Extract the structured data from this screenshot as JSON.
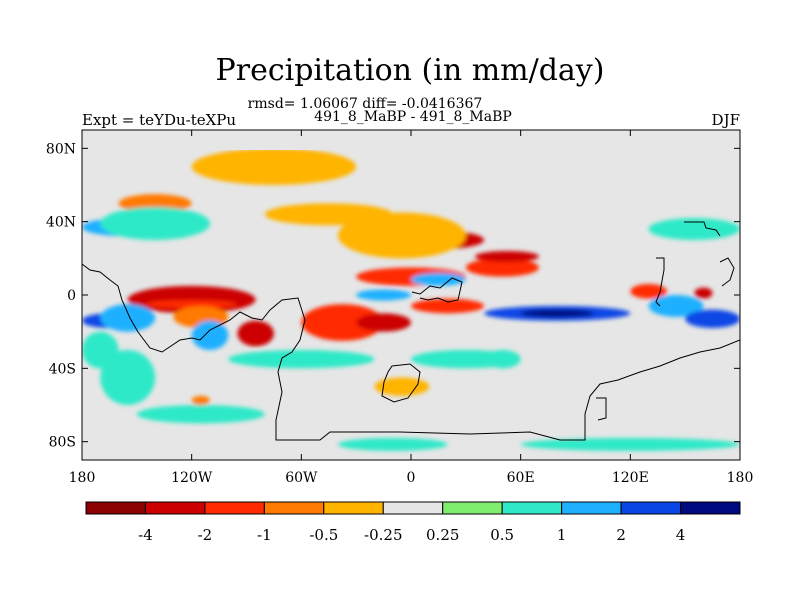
{
  "chart_data": {
    "type": "heatmap",
    "title": "Precipitation (in mm/day)",
    "stats_line": "rmsd= 1.06067 diff= -0.0416367",
    "subtitle": "491_8_MaBP - 491_8_MaBP",
    "left_label": "Expt = teYDu-teXPu",
    "right_label": "DJF",
    "projection": "cylindrical-equidistant",
    "xlim": [
      -180,
      180
    ],
    "ylim": [
      -90,
      90
    ],
    "x_ticks": [
      {
        "value": -180,
        "label": "180"
      },
      {
        "value": -120,
        "label": "120W"
      },
      {
        "value": -60,
        "label": "60W"
      },
      {
        "value": 0,
        "label": "0"
      },
      {
        "value": 60,
        "label": "60E"
      },
      {
        "value": 120,
        "label": "120E"
      },
      {
        "value": 180,
        "label": "180"
      }
    ],
    "y_ticks": [
      {
        "value": 80,
        "label": "80N"
      },
      {
        "value": 40,
        "label": "40N"
      },
      {
        "value": 0,
        "label": "0"
      },
      {
        "value": -40,
        "label": "40S"
      },
      {
        "value": -80,
        "label": "80S"
      }
    ],
    "colorbar": {
      "colors": [
        "#8b0000",
        "#cc0000",
        "#ff2a00",
        "#ff7a00",
        "#ffb400",
        "#e6e6e6",
        "#7fee6e",
        "#2fe9c8",
        "#1fb0ff",
        "#0a46e6",
        "#000a80"
      ],
      "labels": [
        "-4",
        "-2",
        "-1",
        "-0.5",
        "-0.25",
        "0.25",
        "0.5",
        "1",
        "2",
        "4"
      ]
    },
    "regions": [
      {
        "lon": [
          -155,
          -85
        ],
        "lat": [
          -10,
          5
        ],
        "level": -3
      },
      {
        "lon": [
          -145,
          -95
        ],
        "lat": [
          -5,
          -5
        ],
        "level": -2
      },
      {
        "lon": [
          -130,
          -100
        ],
        "lat": [
          -18,
          -6
        ],
        "level": -1
      },
      {
        "lon": [
          -95,
          -75
        ],
        "lat": [
          -28,
          -14
        ],
        "level": -3
      },
      {
        "lon": [
          -60,
          -15
        ],
        "lat": [
          -25,
          -5
        ],
        "level": -2
      },
      {
        "lon": [
          -30,
          0
        ],
        "lat": [
          -20,
          -10
        ],
        "level": -3
      },
      {
        "lon": [
          0,
          40
        ],
        "lat": [
          -10,
          -2
        ],
        "level": -2
      },
      {
        "lon": [
          -30,
          30
        ],
        "lat": [
          5,
          15
        ],
        "level": -2
      },
      {
        "lon": [
          -10,
          40
        ],
        "lat": [
          25,
          35
        ],
        "level": -3
      },
      {
        "lon": [
          30,
          70
        ],
        "lat": [
          10,
          20
        ],
        "level": -2
      },
      {
        "lon": [
          35,
          70
        ],
        "lat": [
          18,
          24
        ],
        "level": -3
      },
      {
        "lon": [
          120,
          140
        ],
        "lat": [
          -2,
          6
        ],
        "level": -2
      },
      {
        "lon": [
          155,
          165
        ],
        "lat": [
          -2,
          4
        ],
        "level": -3
      },
      {
        "lon": [
          -160,
          -120
        ],
        "lat": [
          45,
          55
        ],
        "level": -1
      },
      {
        "lon": [
          -80,
          -10
        ],
        "lat": [
          38,
          50
        ],
        "level": -0.5
      },
      {
        "lon": [
          -40,
          30
        ],
        "lat": [
          20,
          45
        ],
        "level": -0.5
      },
      {
        "lon": [
          -120,
          -30
        ],
        "lat": [
          60,
          80
        ],
        "level": -0.4
      },
      {
        "lon": [
          -20,
          10
        ],
        "lat": [
          -55,
          -45
        ],
        "level": -0.5
      },
      {
        "lon": [
          -120,
          -110
        ],
        "lat": [
          -60,
          -55
        ],
        "level": -1
      },
      {
        "lon": [
          40,
          120
        ],
        "lat": [
          -14,
          -6
        ],
        "level": 2
      },
      {
        "lon": [
          60,
          100
        ],
        "lat": [
          -12,
          -8
        ],
        "level": 4
      },
      {
        "lon": [
          -180,
          -150
        ],
        "lat": [
          -18,
          -10
        ],
        "level": 2
      },
      {
        "lon": [
          -160,
          -150
        ],
        "lat": [
          -15,
          -12
        ],
        "level": 3
      },
      {
        "lon": [
          -170,
          -140
        ],
        "lat": [
          -20,
          -5
        ],
        "level": 1
      },
      {
        "lon": [
          -120,
          -100
        ],
        "lat": [
          -30,
          -14
        ],
        "level": 1
      },
      {
        "lon": [
          0,
          30
        ],
        "lat": [
          5,
          12
        ],
        "level": 1
      },
      {
        "lon": [
          -30,
          0
        ],
        "lat": [
          -3,
          3
        ],
        "level": 1
      },
      {
        "lon": [
          130,
          160
        ],
        "lat": [
          -12,
          0
        ],
        "level": 1
      },
      {
        "lon": [
          150,
          180
        ],
        "lat": [
          -18,
          -8
        ],
        "level": 2
      },
      {
        "lon": [
          -180,
          -130
        ],
        "lat": [
          32,
          42
        ],
        "level": 1
      },
      {
        "lon": [
          -170,
          -110
        ],
        "lat": [
          30,
          48
        ],
        "level": 0.5
      },
      {
        "lon": [
          -180,
          -160
        ],
        "lat": [
          -40,
          -20
        ],
        "level": 0.5
      },
      {
        "lon": [
          -170,
          -140
        ],
        "lat": [
          -60,
          -30
        ],
        "level": 0.5
      },
      {
        "lon": [
          -100,
          -20
        ],
        "lat": [
          -40,
          -30
        ],
        "level": 0.5
      },
      {
        "lon": [
          0,
          60
        ],
        "lat": [
          -40,
          -30
        ],
        "level": 0.5
      },
      {
        "lon": [
          130,
          180
        ],
        "lat": [
          30,
          42
        ],
        "level": 0.5
      },
      {
        "lon": [
          -150,
          -80
        ],
        "lat": [
          -70,
          -60
        ],
        "level": 0.5
      },
      {
        "lon": [
          60,
          180
        ],
        "lat": [
          -85,
          -78
        ],
        "level": 0.5
      },
      {
        "lon": [
          -40,
          20
        ],
        "lat": [
          -85,
          -78
        ],
        "level": 0.5
      },
      {
        "lon": [
          40,
          60
        ],
        "lat": [
          -40,
          -30
        ],
        "level": 0.5
      }
    ]
  }
}
